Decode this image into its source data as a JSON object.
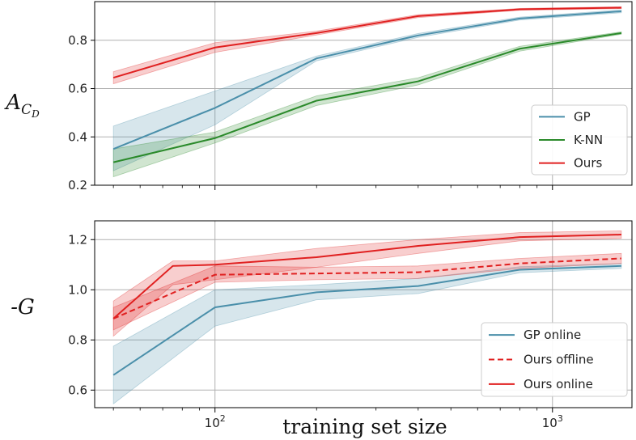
{
  "chart_data": [
    {
      "type": "line",
      "ylabel_main": "A",
      "ylabel_sub": "C",
      "ylabel_subsub": "D",
      "xscale": "log",
      "xlim": [
        44,
        1720
      ],
      "ylim": [
        0.2,
        0.96
      ],
      "yticks": [
        0.2,
        0.4,
        0.6,
        0.8
      ],
      "ytick_labels": [
        "0.2",
        "0.4",
        "0.6",
        "0.8"
      ],
      "grid": true,
      "legend_position": "lower-right",
      "series": [
        {
          "name": "GP",
          "color": "#4a8faa",
          "dash": "solid",
          "x": [
            50,
            100,
            200,
            400,
            800,
            1600
          ],
          "y": [
            0.35,
            0.52,
            0.725,
            0.82,
            0.89,
            0.92
          ],
          "lower": [
            0.26,
            0.45,
            0.715,
            0.812,
            0.884,
            0.914
          ],
          "upper": [
            0.445,
            0.59,
            0.735,
            0.828,
            0.896,
            0.926
          ]
        },
        {
          "name": "K-NN",
          "color": "#2a8a2a",
          "dash": "solid",
          "x": [
            50,
            100,
            200,
            400,
            800,
            1600
          ],
          "y": [
            0.295,
            0.395,
            0.55,
            0.63,
            0.765,
            0.83
          ],
          "lower": [
            0.235,
            0.375,
            0.53,
            0.615,
            0.755,
            0.825
          ],
          "upper": [
            0.35,
            0.42,
            0.57,
            0.645,
            0.775,
            0.835
          ]
        },
        {
          "name": "Ours",
          "color": "#e02020",
          "dash": "solid",
          "x": [
            50,
            100,
            200,
            400,
            800,
            1600
          ],
          "y": [
            0.645,
            0.77,
            0.83,
            0.9,
            0.928,
            0.935
          ],
          "lower": [
            0.62,
            0.75,
            0.822,
            0.894,
            0.924,
            0.931
          ],
          "upper": [
            0.67,
            0.79,
            0.838,
            0.906,
            0.932,
            0.939
          ]
        }
      ]
    },
    {
      "type": "line",
      "ylabel": "-G",
      "xlabel": "training set size",
      "xscale": "log",
      "xlim": [
        44,
        1720
      ],
      "ylim": [
        0.53,
        1.275
      ],
      "yticks": [
        0.6,
        0.8,
        1.0,
        1.2
      ],
      "ytick_labels": [
        "0.6",
        "0.8",
        "1.0",
        "1.2"
      ],
      "xticks": [
        100,
        1000
      ],
      "xtick_base": "10",
      "xtick_exps": [
        "2",
        "3"
      ],
      "grid": true,
      "legend_position": "lower-right",
      "series": [
        {
          "name": "GP online",
          "color": "#4a8faa",
          "dash": "solid",
          "x": [
            50,
            100,
            200,
            400,
            800,
            1600
          ],
          "y": [
            0.66,
            0.93,
            0.99,
            1.015,
            1.08,
            1.095
          ],
          "lower": [
            0.545,
            0.855,
            0.96,
            0.985,
            1.068,
            1.085
          ],
          "upper": [
            0.775,
            1.0,
            1.02,
            1.045,
            1.092,
            1.105
          ]
        },
        {
          "name": "Ours offline",
          "color": "#e02020",
          "dash": "dashed",
          "x": [
            50,
            100,
            200,
            400,
            800,
            1600
          ],
          "y": [
            0.885,
            1.06,
            1.065,
            1.07,
            1.105,
            1.125
          ],
          "lower": [
            0.84,
            1.03,
            1.04,
            1.045,
            1.085,
            1.105
          ],
          "upper": [
            0.93,
            1.095,
            1.09,
            1.095,
            1.125,
            1.145
          ]
        },
        {
          "name": "Ours online",
          "color": "#e02020",
          "dash": "solid",
          "x": [
            50,
            75,
            100,
            200,
            400,
            800,
            1600
          ],
          "y": [
            0.885,
            1.095,
            1.1,
            1.13,
            1.175,
            1.21,
            1.22
          ],
          "lower": [
            0.815,
            1.02,
            1.04,
            1.09,
            1.145,
            1.195,
            1.205
          ],
          "upper": [
            0.955,
            1.115,
            1.115,
            1.165,
            1.2,
            1.228,
            1.235
          ]
        }
      ]
    }
  ]
}
